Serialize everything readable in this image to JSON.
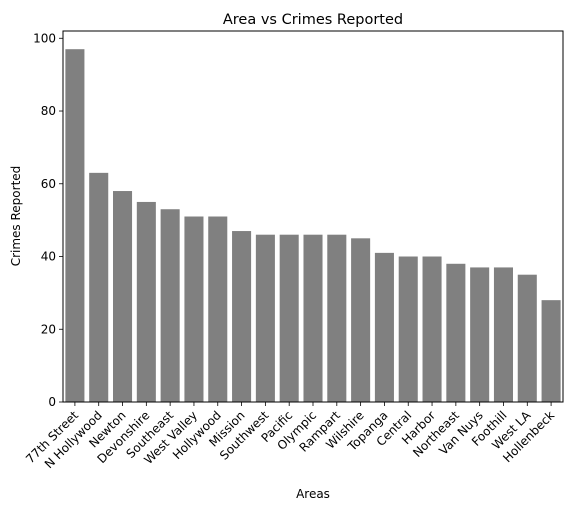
{
  "chart_data": {
    "type": "bar",
    "title": "Area vs Crimes Reported",
    "xlabel": "Areas",
    "ylabel": "Crimes Reported",
    "categories": [
      "77th Street",
      "N Hollywood",
      "Newton",
      "Devonshire",
      "Southeast",
      "West Valley",
      "Hollywood",
      "Mission",
      "Southwest",
      "Pacific",
      "Olympic",
      "Rampart",
      "Wilshire",
      "Topanga",
      "Central",
      "Harbor",
      "Northeast",
      "Van Nuys",
      "Foothill",
      "West LA",
      "Hollenbeck"
    ],
    "values": [
      97,
      63,
      58,
      55,
      53,
      51,
      51,
      47,
      46,
      46,
      46,
      46,
      45,
      41,
      40,
      40,
      38,
      37,
      37,
      35,
      28
    ],
    "ylim": [
      0,
      102
    ],
    "yticks": [
      0,
      20,
      40,
      60,
      80,
      100
    ],
    "bar_color": "#808080",
    "grid": false,
    "legend": "none"
  }
}
